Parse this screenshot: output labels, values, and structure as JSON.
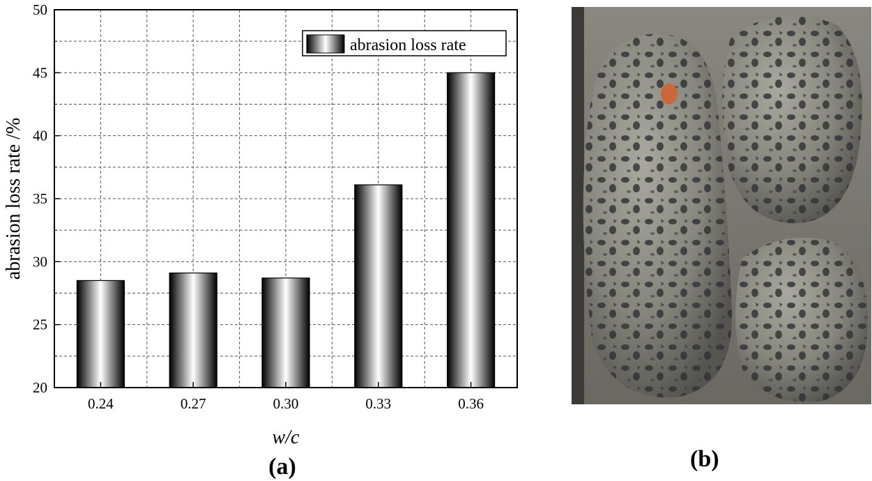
{
  "chart_data": {
    "type": "bar",
    "categories": [
      "0.24",
      "0.27",
      "0.30",
      "0.33",
      "0.36"
    ],
    "values": [
      28.5,
      29.1,
      28.7,
      36.1,
      45.0
    ],
    "series": [
      {
        "name": "abrasion loss rate",
        "values": [
          28.5,
          29.1,
          28.7,
          36.1,
          45.0
        ]
      }
    ],
    "xlabel": "w/c",
    "ylabel": "abrasion loss rate /%",
    "ylim": [
      20,
      50
    ],
    "yticks": [
      "20",
      "25",
      "30",
      "35",
      "40",
      "45",
      "50"
    ],
    "grid": true,
    "legend": "top-right",
    "panel_label": "(a)"
  },
  "photo": {
    "panel_label": "(b)"
  },
  "colors": {
    "bar_dark": "#000000",
    "bar_light": "#ffffff",
    "grid": "#555555",
    "photo_bg": "#7a7670",
    "rock": "#8d8c83",
    "pore": "#3a3a3c"
  }
}
